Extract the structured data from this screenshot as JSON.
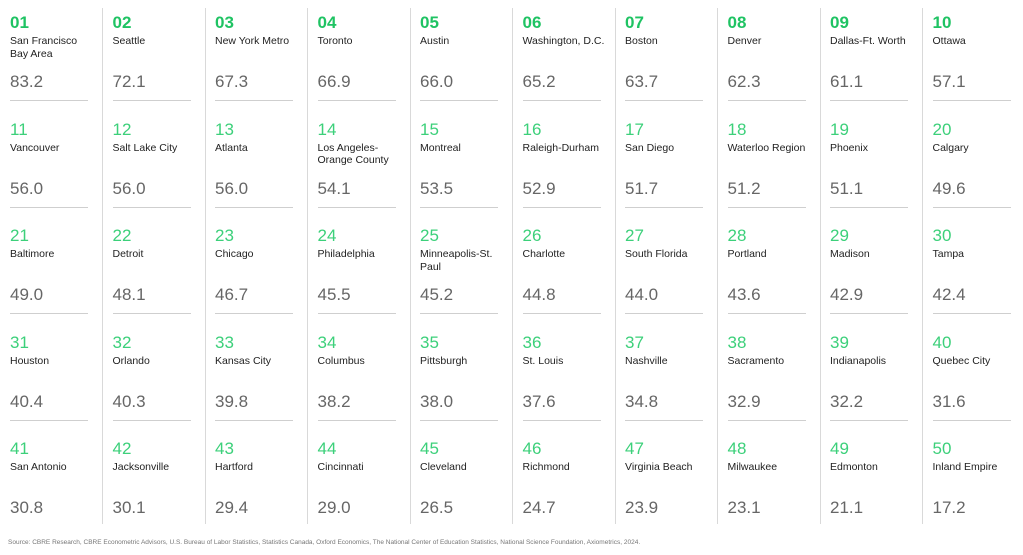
{
  "rankings": [
    {
      "rank": "01",
      "city": "San Francisco Bay Area",
      "score": "83.2"
    },
    {
      "rank": "02",
      "city": "Seattle",
      "score": "72.1"
    },
    {
      "rank": "03",
      "city": "New York Metro",
      "score": "67.3"
    },
    {
      "rank": "04",
      "city": "Toronto",
      "score": "66.9"
    },
    {
      "rank": "05",
      "city": "Austin",
      "score": "66.0"
    },
    {
      "rank": "06",
      "city": "Washington, D.C.",
      "score": "65.2"
    },
    {
      "rank": "07",
      "city": "Boston",
      "score": "63.7"
    },
    {
      "rank": "08",
      "city": "Denver",
      "score": "62.3"
    },
    {
      "rank": "09",
      "city": "Dallas-Ft. Worth",
      "score": "61.1"
    },
    {
      "rank": "10",
      "city": "Ottawa",
      "score": "57.1"
    },
    {
      "rank": "11",
      "city": "Vancouver",
      "score": "56.0"
    },
    {
      "rank": "12",
      "city": "Salt Lake City",
      "score": "56.0"
    },
    {
      "rank": "13",
      "city": "Atlanta",
      "score": "56.0"
    },
    {
      "rank": "14",
      "city": "Los Angeles-Orange County",
      "score": "54.1"
    },
    {
      "rank": "15",
      "city": "Montreal",
      "score": "53.5"
    },
    {
      "rank": "16",
      "city": "Raleigh-Durham",
      "score": "52.9"
    },
    {
      "rank": "17",
      "city": "San Diego",
      "score": "51.7"
    },
    {
      "rank": "18",
      "city": "Waterloo Region",
      "score": "51.2"
    },
    {
      "rank": "19",
      "city": "Phoenix",
      "score": "51.1"
    },
    {
      "rank": "20",
      "city": "Calgary",
      "score": "49.6"
    },
    {
      "rank": "21",
      "city": "Baltimore",
      "score": "49.0"
    },
    {
      "rank": "22",
      "city": "Detroit",
      "score": "48.1"
    },
    {
      "rank": "23",
      "city": "Chicago",
      "score": "46.7"
    },
    {
      "rank": "24",
      "city": "Philadelphia",
      "score": "45.5"
    },
    {
      "rank": "25",
      "city": "Minneapolis-St. Paul",
      "score": "45.2"
    },
    {
      "rank": "26",
      "city": "Charlotte",
      "score": "44.8"
    },
    {
      "rank": "27",
      "city": "South Florida",
      "score": "44.0"
    },
    {
      "rank": "28",
      "city": "Portland",
      "score": "43.6"
    },
    {
      "rank": "29",
      "city": "Madison",
      "score": "42.9"
    },
    {
      "rank": "30",
      "city": "Tampa",
      "score": "42.4"
    },
    {
      "rank": "31",
      "city": "Houston",
      "score": "40.4"
    },
    {
      "rank": "32",
      "city": "Orlando",
      "score": "40.3"
    },
    {
      "rank": "33",
      "city": "Kansas City",
      "score": "39.8"
    },
    {
      "rank": "34",
      "city": "Columbus",
      "score": "38.2"
    },
    {
      "rank": "35",
      "city": "Pittsburgh",
      "score": "38.0"
    },
    {
      "rank": "36",
      "city": "St. Louis",
      "score": "37.6"
    },
    {
      "rank": "37",
      "city": "Nashville",
      "score": "34.8"
    },
    {
      "rank": "38",
      "city": "Sacramento",
      "score": "32.9"
    },
    {
      "rank": "39",
      "city": "Indianapolis",
      "score": "32.2"
    },
    {
      "rank": "40",
      "city": "Quebec City",
      "score": "31.6"
    },
    {
      "rank": "41",
      "city": "San Antonio",
      "score": "30.8"
    },
    {
      "rank": "42",
      "city": "Jacksonville",
      "score": "30.1"
    },
    {
      "rank": "43",
      "city": "Hartford",
      "score": "29.4"
    },
    {
      "rank": "44",
      "city": "Cincinnati",
      "score": "29.0"
    },
    {
      "rank": "45",
      "city": "Cleveland",
      "score": "26.5"
    },
    {
      "rank": "46",
      "city": "Richmond",
      "score": "24.7"
    },
    {
      "rank": "47",
      "city": "Virginia Beach",
      "score": "23.9"
    },
    {
      "rank": "48",
      "city": "Milwaukee",
      "score": "23.1"
    },
    {
      "rank": "49",
      "city": "Edmonton",
      "score": "21.1"
    },
    {
      "rank": "50",
      "city": "Inland Empire",
      "score": "17.2"
    }
  ],
  "source": "Source: CBRE Research, CBRE Econometric Advisors, U.S. Bureau of Labor Statistics, Statistics Canada, Oxford Economics, The National Center of Education Statistics, National Science Foundation, Axiometrics, 2024.",
  "colors": {
    "accent": "#3cd07a",
    "accent_strong": "#1fc363",
    "score": "#666666",
    "divider": "#d9d9d9"
  }
}
